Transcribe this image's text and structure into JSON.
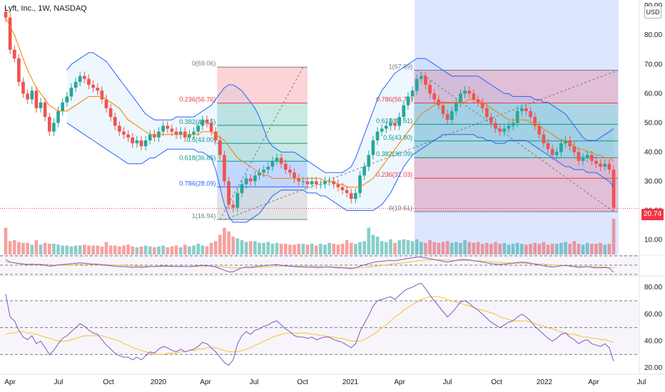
{
  "header": {
    "title": "Lyft, Inc., 1W, NASDAQ",
    "currency": "USD"
  },
  "last_price": {
    "value": 20.74,
    "label": "20.74"
  },
  "colors": {
    "up": "#26a69a",
    "down": "#ef5350",
    "bollinger": "#2962ff",
    "ma": "#f57c00",
    "rsi": "#7e57c2",
    "rsi_ma": "#fbc02d",
    "fib_red": "#f23645",
    "fib_green": "#089981",
    "highlight": "#d1deff"
  },
  "chart_data": [
    {
      "type": "candlestick",
      "title": "Lyft, Inc., 1W, NASDAQ",
      "ylim": [
        5,
        92
      ],
      "y_ticks": [
        10,
        20,
        30,
        40,
        50,
        60,
        70,
        80,
        90
      ],
      "y_tick_labels": [
        "10.00",
        "20.00",
        "30.00",
        "40.00",
        "50.00",
        "60.00",
        "70.00",
        "80.00",
        "90.00"
      ],
      "x_tick_labels": [
        "Apr",
        "Jul",
        "Oct",
        "2020",
        "Apr",
        "Jul",
        "Oct",
        "2021",
        "Apr",
        "Jul",
        "Oct",
        "2022",
        "Apr",
        "Jul"
      ],
      "close": [
        86,
        75,
        72,
        64,
        60,
        58,
        61,
        55,
        57,
        52,
        47,
        50,
        54,
        57,
        59,
        62,
        64,
        66,
        65,
        63,
        62,
        61,
        58,
        55,
        52,
        49,
        47,
        46,
        45,
        43,
        44,
        42,
        44,
        46,
        45,
        47,
        49,
        48,
        47,
        46,
        47,
        45,
        46,
        47,
        49,
        51,
        50,
        47,
        44,
        39,
        30,
        22,
        21,
        26,
        29,
        31,
        30,
        32,
        33,
        34,
        35,
        37,
        38,
        36,
        34,
        33,
        31,
        30,
        30,
        29,
        30,
        29,
        29,
        30,
        30,
        29,
        28,
        27,
        26,
        24,
        26,
        32,
        35,
        39,
        44,
        47,
        48,
        49,
        50,
        49,
        52,
        56,
        59,
        61,
        65,
        66,
        63,
        60,
        58,
        56,
        53,
        51,
        54,
        57,
        60,
        61,
        60,
        58,
        57,
        55,
        52,
        50,
        48,
        47,
        48,
        49,
        50,
        54,
        55,
        54,
        52,
        49,
        46,
        43,
        41,
        39,
        40,
        43,
        44,
        42,
        40,
        37,
        38,
        39,
        37,
        36,
        35,
        36,
        34,
        21
      ],
      "ma": [
        86,
        83,
        80,
        76,
        72,
        68,
        65,
        62,
        60,
        58,
        56,
        55,
        54,
        54,
        54,
        55,
        56,
        57,
        58,
        59,
        59,
        59,
        59,
        58,
        57,
        56,
        55,
        53,
        51,
        50,
        49,
        48,
        47,
        46,
        46,
        46,
        46,
        46,
        46,
        46,
        46,
        46,
        46,
        46,
        46,
        47,
        47,
        47,
        46,
        45,
        44,
        42,
        40,
        38,
        37,
        36,
        35,
        34,
        33,
        32,
        32,
        31,
        31,
        31,
        31,
        31,
        31,
        31,
        31,
        31,
        31,
        31,
        31,
        30,
        30,
        30,
        29,
        29,
        28,
        28,
        28,
        28,
        29,
        30,
        31,
        33,
        35,
        37,
        39,
        41,
        43,
        45,
        47,
        49,
        51,
        53,
        54,
        55,
        56,
        57,
        57,
        57,
        57,
        57,
        57,
        57,
        58,
        58,
        58,
        57,
        56,
        55,
        54,
        53,
        52,
        51,
        51,
        51,
        51,
        51,
        50,
        50,
        49,
        48,
        47,
        46,
        45,
        44,
        44,
        43,
        42,
        41,
        41,
        40,
        40,
        39,
        39,
        38,
        38,
        37
      ],
      "bb_upper": [
        null,
        null,
        null,
        null,
        null,
        null,
        null,
        null,
        null,
        null,
        null,
        null,
        null,
        null,
        68,
        70,
        71,
        72,
        73,
        74,
        74,
        73,
        72,
        71,
        69,
        67,
        65,
        63,
        61,
        59,
        57,
        55,
        53,
        52,
        51,
        51,
        51,
        51,
        51,
        52,
        52,
        52,
        52,
        52,
        53,
        54,
        55,
        56,
        58,
        60,
        62,
        63,
        63,
        62,
        61,
        59,
        57,
        55,
        52,
        48,
        44,
        42,
        41,
        40,
        40,
        40,
        40,
        39,
        38,
        37,
        36,
        35,
        34,
        33,
        33,
        33,
        33,
        33,
        34,
        35,
        38,
        42,
        46,
        50,
        54,
        58,
        61,
        63,
        65,
        67,
        68,
        69,
        70,
        71,
        72,
        72,
        72,
        71,
        70,
        69,
        68,
        67,
        66,
        66,
        66,
        66,
        66,
        66,
        66,
        65,
        64,
        63,
        62,
        61,
        60,
        60,
        59,
        59,
        59,
        59,
        59,
        58,
        58,
        57,
        57,
        56,
        55,
        54,
        53,
        51,
        49,
        47,
        45,
        44,
        44,
        44,
        45,
        46,
        47,
        48
      ],
      "bb_lower": [
        null,
        null,
        null,
        null,
        null,
        null,
        null,
        null,
        null,
        null,
        null,
        null,
        null,
        null,
        50,
        49,
        48,
        47,
        46,
        45,
        44,
        43,
        42,
        41,
        40,
        39,
        38,
        37,
        36,
        36,
        36,
        36,
        37,
        38,
        38,
        39,
        40,
        41,
        41,
        41,
        41,
        41,
        41,
        41,
        40,
        40,
        39,
        38,
        34,
        28,
        22,
        18,
        16,
        16,
        16,
        16,
        17,
        18,
        19,
        21,
        23,
        25,
        26,
        27,
        27,
        27,
        27,
        27,
        27,
        26,
        26,
        26,
        25,
        25,
        24,
        23,
        22,
        21,
        20,
        20,
        20,
        20,
        20,
        20,
        20,
        21,
        22,
        24,
        26,
        29,
        32,
        35,
        37,
        39,
        40,
        41,
        42,
        43,
        44,
        45,
        46,
        46,
        46,
        46,
        46,
        46,
        46,
        46,
        45,
        45,
        44,
        44,
        43,
        43,
        43,
        44,
        44,
        44,
        44,
        44,
        43,
        42,
        41,
        40,
        39,
        38,
        37,
        36,
        35,
        35,
        34,
        34,
        34,
        33,
        33,
        33,
        32,
        31,
        30,
        28
      ],
      "volume": [
        30,
        15,
        16,
        14,
        13,
        13,
        11,
        16,
        11,
        13,
        12,
        12,
        11,
        10,
        10,
        9,
        10,
        10,
        11,
        10,
        10,
        10,
        9,
        14,
        10,
        10,
        9,
        10,
        11,
        9,
        8,
        9,
        10,
        9,
        8,
        9,
        10,
        8,
        9,
        10,
        8,
        11,
        9,
        10,
        12,
        10,
        9,
        13,
        15,
        22,
        30,
        26,
        20,
        18,
        16,
        14,
        15,
        15,
        13,
        13,
        14,
        12,
        13,
        12,
        12,
        11,
        11,
        12,
        12,
        11,
        12,
        10,
        12,
        11,
        13,
        12,
        11,
        12,
        16,
        13,
        12,
        14,
        15,
        30,
        22,
        20,
        15,
        14,
        17,
        13,
        16,
        17,
        16,
        15,
        17,
        14,
        13,
        16,
        14,
        13,
        14,
        15,
        13,
        14,
        13,
        16,
        14,
        13,
        14,
        12,
        13,
        12,
        14,
        12,
        13,
        11,
        12,
        13,
        12,
        11,
        12,
        13,
        12,
        14,
        11,
        12,
        12,
        13,
        14,
        12,
        15,
        12,
        11,
        13,
        12,
        12,
        13,
        11,
        12,
        40
      ],
      "fib_left": {
        "x_range": [
          49,
          68
        ],
        "levels": [
          {
            "ratio": 0,
            "value": 69.06,
            "label": "0(69.06)"
          },
          {
            "ratio": 0.236,
            "value": 56.76,
            "label": "0.236(56.76)"
          },
          {
            "ratio": 0.382,
            "value": 49.15,
            "label": "0.382(49.15)"
          },
          {
            "ratio": 0.5,
            "value": 43.0,
            "label": "0.5(43.00)"
          },
          {
            "ratio": 0.618,
            "value": 36.85,
            "label": "0.618(36.85)"
          },
          {
            "ratio": 0.786,
            "value": 28.09,
            "label": "0.786(28.09)"
          },
          {
            "ratio": 1,
            "value": 16.94,
            "label": "1(16.94)"
          }
        ]
      },
      "fib_right": {
        "x_range": [
          94,
          140
        ],
        "levels": [
          {
            "ratio": 1,
            "value": 67.99,
            "label": "1(67.99)"
          },
          {
            "ratio": 0.786,
            "value": 56.78,
            "label": "0.786(56.78)"
          },
          {
            "ratio": 0.618,
            "value": 49.51,
            "label": "0.618(49.51)"
          },
          {
            "ratio": 0.5,
            "value": 43.8,
            "label": "0.5(43.80)"
          },
          {
            "ratio": 0.382,
            "value": 38.09,
            "label": "0.382(38.09)"
          },
          {
            "ratio": 0.236,
            "value": 31.03,
            "label": "0.236(31.03)"
          },
          {
            "ratio": 0,
            "value": 19.61,
            "label": "0(19.61)"
          }
        ]
      }
    },
    {
      "type": "line",
      "name": "indicator-1",
      "rsi": [
        66,
        60,
        58,
        56,
        55,
        54,
        55,
        53,
        54,
        52,
        50,
        51,
        53,
        54,
        55,
        56,
        57,
        58,
        57,
        56,
        55,
        55,
        53,
        52,
        51,
        50,
        49,
        49,
        48,
        47,
        48,
        47,
        48,
        49,
        49,
        50,
        51,
        50,
        50,
        49,
        50,
        49,
        49,
        50,
        51,
        52,
        51,
        50,
        48,
        44,
        40,
        36,
        36,
        42,
        46,
        48,
        47,
        49,
        50,
        51,
        52,
        53,
        54,
        52,
        51,
        50,
        49,
        48,
        48,
        47,
        48,
        47,
        47,
        48,
        48,
        47,
        46,
        46,
        45,
        44,
        46,
        50,
        53,
        56,
        59,
        61,
        62,
        63,
        64,
        63,
        65,
        67,
        69,
        70,
        72,
        72,
        70,
        68,
        66,
        64,
        62,
        60,
        62,
        64,
        66,
        66,
        65,
        63,
        62,
        60,
        58,
        56,
        55,
        54,
        55,
        56,
        57,
        59,
        60,
        59,
        57,
        55,
        53,
        51,
        49,
        48,
        49,
        51,
        52,
        50,
        49,
        47,
        48,
        49,
        47,
        46,
        46,
        47,
        45,
        35
      ],
      "rsi_ma": [
        60,
        59,
        58,
        57,
        56,
        55,
        55,
        55,
        55,
        54,
        54,
        53,
        53,
        53,
        53,
        53,
        54,
        54,
        54,
        54,
        54,
        54,
        54,
        54,
        53,
        53,
        52,
        52,
        51,
        51,
        50,
        50,
        50,
        49,
        49,
        49,
        49,
        49,
        49,
        49,
        49,
        49,
        49,
        49,
        49,
        49,
        50,
        50,
        49,
        49,
        48,
        47,
        46,
        46,
        46,
        46,
        46,
        47,
        47,
        48,
        48,
        49,
        50,
        50,
        50,
        50,
        50,
        50,
        50,
        50,
        49,
        49,
        49,
        48,
        48,
        48,
        48,
        47,
        47,
        46,
        46,
        47,
        47,
        48,
        49,
        50,
        52,
        53,
        55,
        56,
        57,
        58,
        60,
        61,
        63,
        64,
        65,
        65,
        66,
        66,
        65,
        65,
        64,
        64,
        64,
        64,
        64,
        63,
        63,
        62,
        62,
        61,
        60,
        59,
        58,
        58,
        57,
        57,
        57,
        57,
        56,
        56,
        55,
        55,
        54,
        53,
        52,
        52,
        51,
        51,
        50,
        50,
        49,
        49,
        49,
        48,
        48,
        48,
        47,
        46
      ]
    },
    {
      "type": "line",
      "name": "indicator-2",
      "ylim": [
        18,
        88
      ],
      "y_ticks": [
        20,
        40,
        60,
        80
      ],
      "y_tick_labels": [
        "20.00",
        "40.00",
        "60.00",
        "80.00"
      ],
      "rsi": [
        75,
        58,
        55,
        48,
        43,
        41,
        44,
        38,
        40,
        35,
        30,
        33,
        38,
        42,
        44,
        47,
        50,
        53,
        51,
        48,
        46,
        45,
        41,
        37,
        34,
        31,
        29,
        28,
        28,
        26,
        28,
        26,
        29,
        32,
        31,
        34,
        36,
        35,
        33,
        32,
        34,
        32,
        33,
        34,
        36,
        39,
        38,
        35,
        32,
        28,
        24,
        22,
        26,
        38,
        44,
        47,
        45,
        48,
        49,
        51,
        52,
        54,
        55,
        52,
        49,
        47,
        44,
        43,
        43,
        42,
        43,
        41,
        42,
        43,
        43,
        41,
        40,
        39,
        37,
        35,
        38,
        47,
        53,
        59,
        66,
        70,
        71,
        72,
        73,
        71,
        74,
        77,
        79,
        80,
        82,
        83,
        79,
        74,
        70,
        66,
        62,
        58,
        61,
        65,
        69,
        70,
        68,
        65,
        63,
        60,
        57,
        54,
        52,
        50,
        52,
        54,
        55,
        58,
        60,
        58,
        55,
        51,
        48,
        45,
        42,
        40,
        42,
        45,
        46,
        43,
        41,
        38,
        40,
        41,
        38,
        37,
        36,
        38,
        35,
        25
      ],
      "rsi_ma": [
        45,
        46,
        46,
        47,
        47,
        46,
        46,
        45,
        44,
        43,
        42,
        41,
        40,
        40,
        40,
        41,
        42,
        43,
        44,
        44,
        44,
        44,
        44,
        43,
        42,
        41,
        40,
        38,
        37,
        35,
        34,
        33,
        32,
        31,
        30,
        30,
        30,
        31,
        31,
        31,
        32,
        32,
        33,
        33,
        34,
        34,
        35,
        35,
        35,
        34,
        33,
        32,
        32,
        32,
        33,
        34,
        35,
        37,
        38,
        40,
        41,
        43,
        44,
        45,
        46,
        46,
        46,
        46,
        46,
        46,
        45,
        45,
        44,
        44,
        43,
        43,
        42,
        42,
        41,
        40,
        40,
        40,
        41,
        43,
        45,
        47,
        50,
        52,
        55,
        58,
        60,
        63,
        65,
        67,
        69,
        71,
        72,
        73,
        73,
        73,
        72,
        71,
        70,
        69,
        68,
        67,
        66,
        65,
        64,
        63,
        62,
        61,
        60,
        58,
        57,
        56,
        55,
        55,
        55,
        55,
        54,
        53,
        52,
        51,
        50,
        49,
        48,
        47,
        46,
        45,
        45,
        44,
        43,
        43,
        42,
        42,
        41,
        41,
        40,
        39
      ]
    }
  ]
}
